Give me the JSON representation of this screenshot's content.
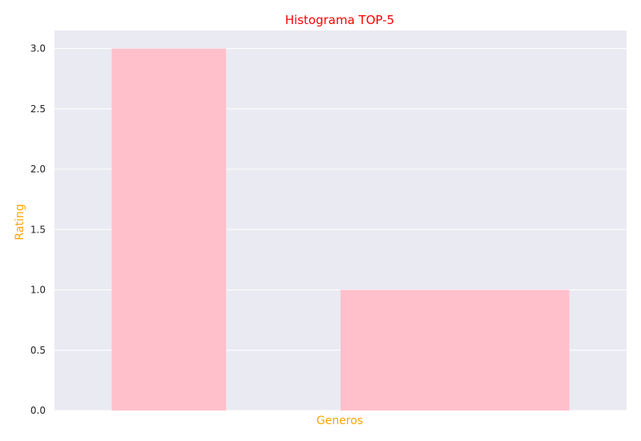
{
  "chart_data": {
    "type": "histogram",
    "title": "Histograma TOP-5",
    "xlabel": "Generos",
    "ylabel": "Rating",
    "bins": [
      {
        "range": [
          0.0,
          0.25
        ],
        "value": 3
      },
      {
        "range": [
          0.25,
          0.5
        ],
        "value": 0
      },
      {
        "range": [
          0.5,
          1.0
        ],
        "value": 1
      }
    ],
    "ylim": [
      0,
      3.15
    ],
    "yticks": [
      "0.0",
      "0.5",
      "1.0",
      "1.5",
      "2.0",
      "2.5",
      "3.0"
    ],
    "xticks": [],
    "grid": true,
    "legend": "none"
  },
  "colors": {
    "background": "#eaeaf2",
    "bar": "#ffc0cb",
    "grid": "#ffffff",
    "title": "#ff0000",
    "axis_labels": "#ffa500"
  }
}
